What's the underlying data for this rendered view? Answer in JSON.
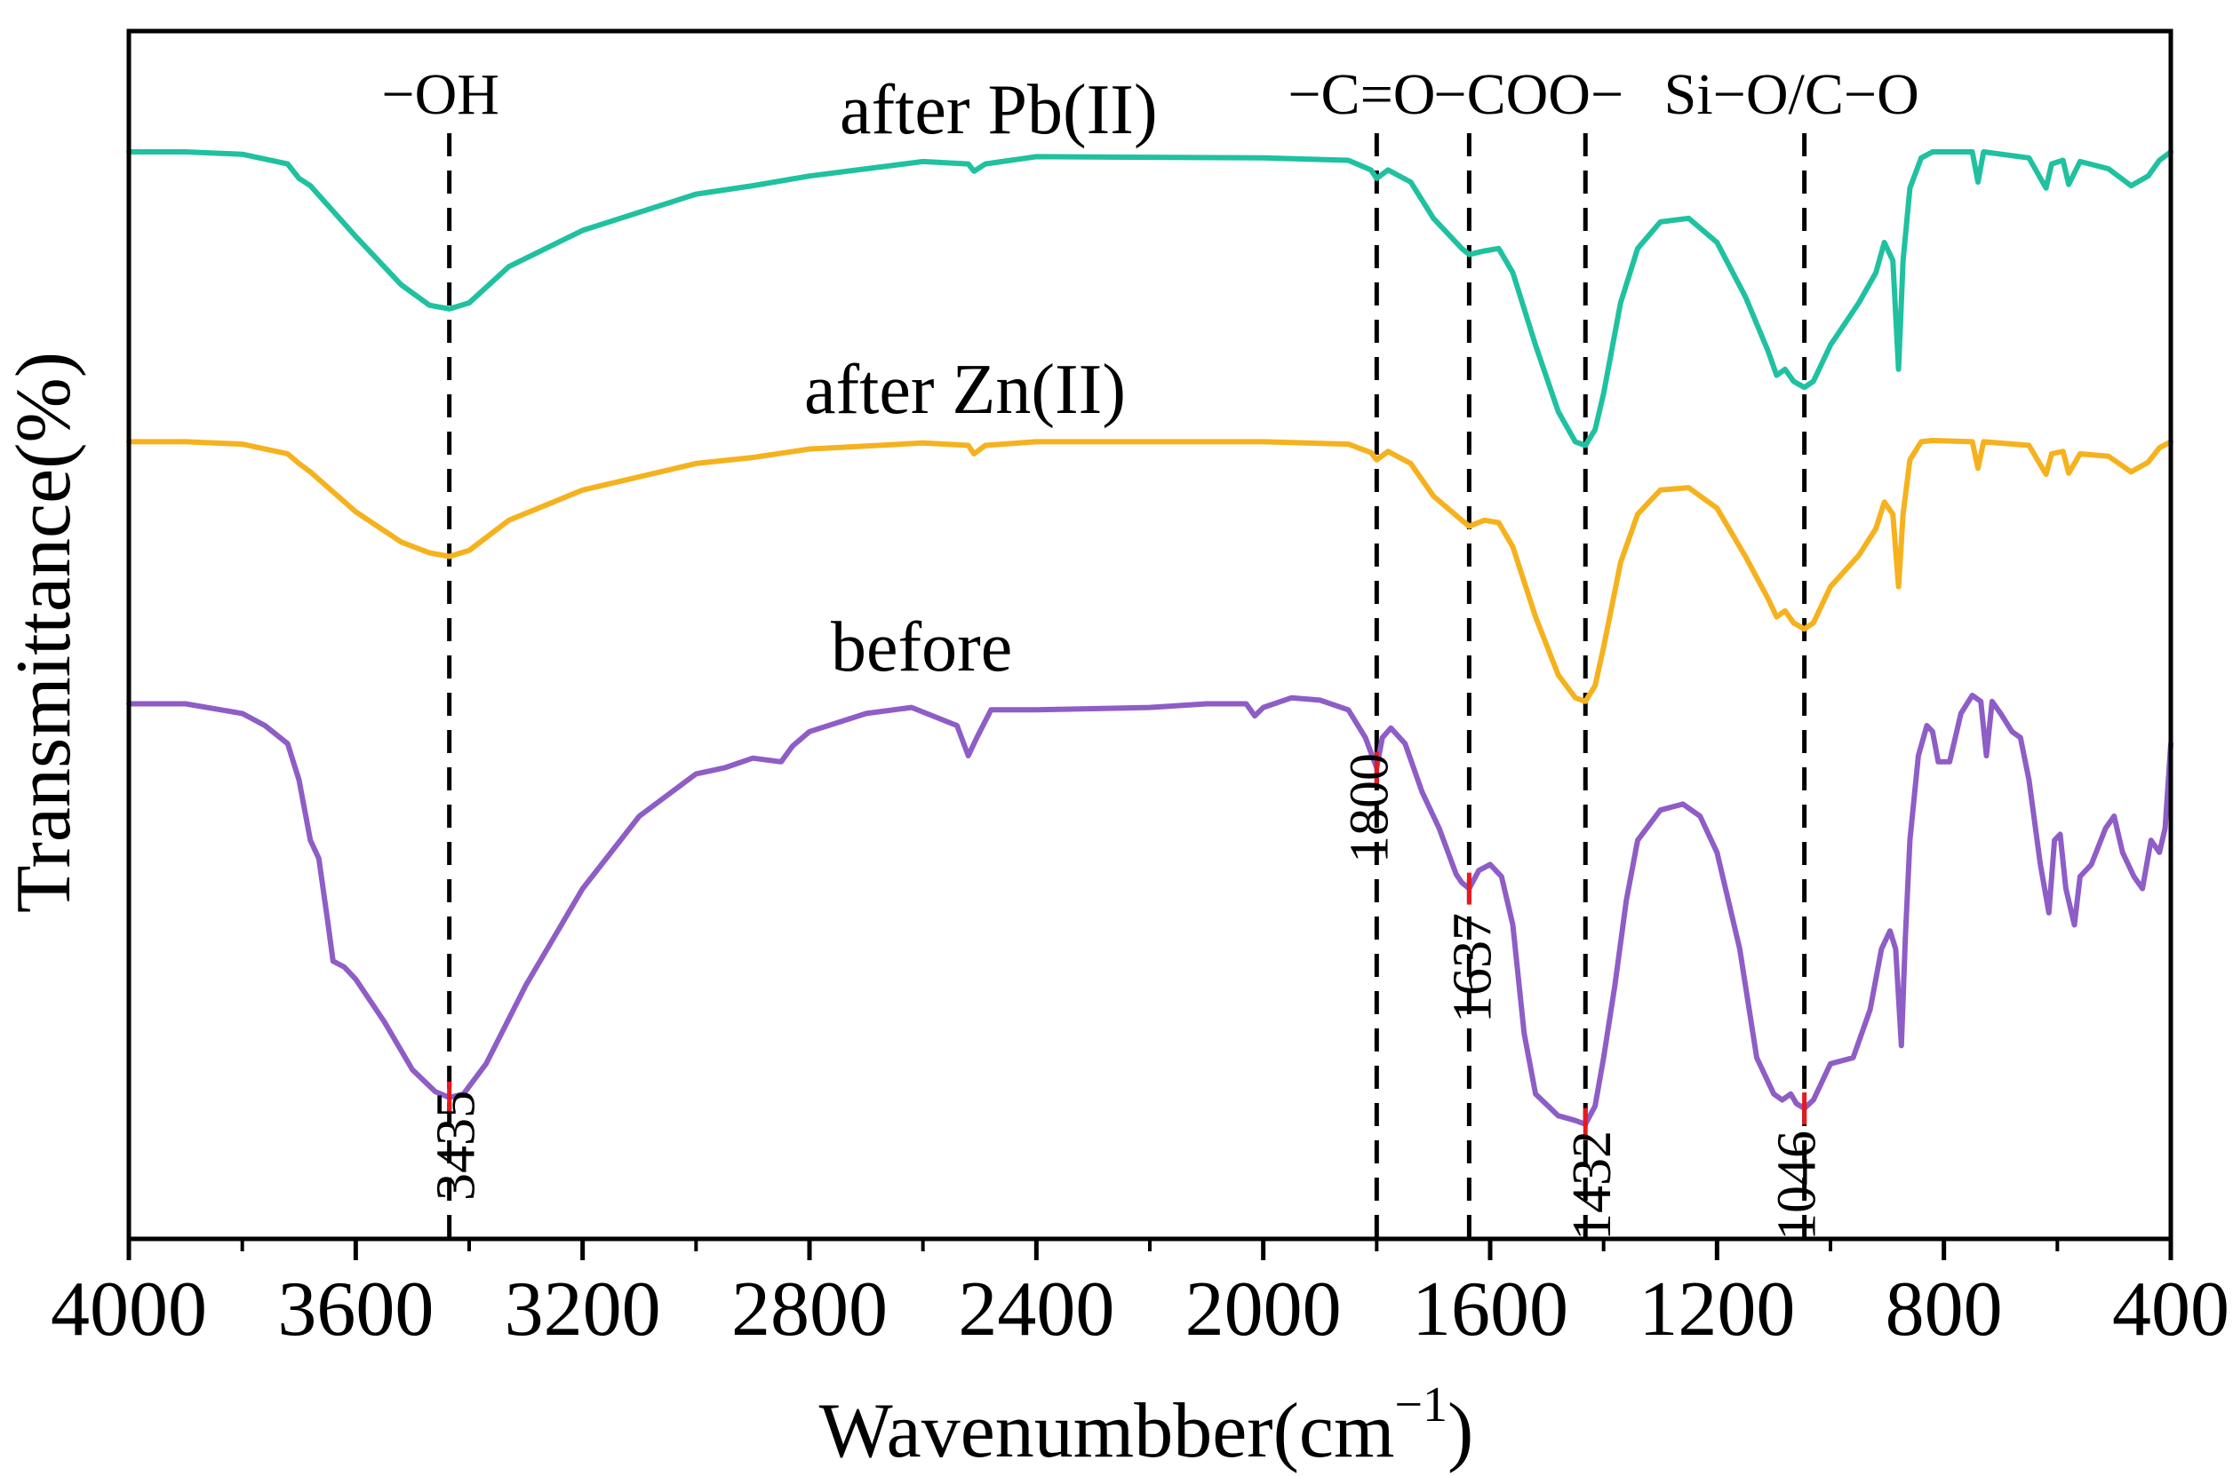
{
  "chart_data": {
    "type": "line",
    "title": "",
    "xlabel": "Wavenumbber(cm",
    "xlabel_sup": "−1",
    "xlabel_close": ")",
    "ylabel": "Transmittance(%)",
    "xlim": [
      4000,
      400
    ],
    "x_reversed": true,
    "x_ticks": [
      4000,
      3600,
      3200,
      2800,
      2400,
      2000,
      1600,
      1200,
      800,
      400
    ],
    "x_tick_labels": [
      "4000",
      "3600",
      "3200",
      "2800",
      "2400",
      "2000",
      "1600",
      "1200",
      "800",
      "400"
    ],
    "ylim": [
      0,
      100
    ],
    "y_ticks_visible": false,
    "grid": false,
    "colors": {
      "pb": "#1fc1a0",
      "zn": "#f5b21e",
      "before": "#8e5dc6",
      "peak_marker": "#e8191e",
      "axis": "#000000"
    },
    "series": [
      {
        "name": "after Pb(II)",
        "color": "#1fc1a0",
        "points": [
          [
            4000,
            90
          ],
          [
            3900,
            90
          ],
          [
            3800,
            89.8
          ],
          [
            3720,
            89
          ],
          [
            3700,
            87.8
          ],
          [
            3680,
            87.2
          ],
          [
            3600,
            83
          ],
          [
            3520,
            79
          ],
          [
            3470,
            77.3
          ],
          [
            3435,
            77
          ],
          [
            3400,
            77.5
          ],
          [
            3330,
            80.5
          ],
          [
            3200,
            83.5
          ],
          [
            3000,
            86.5
          ],
          [
            2900,
            87.2
          ],
          [
            2800,
            88
          ],
          [
            2600,
            89.2
          ],
          [
            2520,
            89
          ],
          [
            2510,
            88.4
          ],
          [
            2490,
            89
          ],
          [
            2400,
            89.6
          ],
          [
            2000,
            89.5
          ],
          [
            1850,
            89.3
          ],
          [
            1810,
            88.5
          ],
          [
            1800,
            87.8
          ],
          [
            1780,
            88.5
          ],
          [
            1740,
            87.5
          ],
          [
            1700,
            84.5
          ],
          [
            1650,
            82
          ],
          [
            1637,
            81.5
          ],
          [
            1610,
            81.8
          ],
          [
            1585,
            82
          ],
          [
            1560,
            80
          ],
          [
            1520,
            74
          ],
          [
            1480,
            68.5
          ],
          [
            1450,
            66
          ],
          [
            1432,
            65.7
          ],
          [
            1415,
            67
          ],
          [
            1400,
            70
          ],
          [
            1370,
            77.5
          ],
          [
            1340,
            82
          ],
          [
            1300,
            84.2
          ],
          [
            1250,
            84.5
          ],
          [
            1200,
            82.5
          ],
          [
            1150,
            78
          ],
          [
            1110,
            73.5
          ],
          [
            1095,
            71.5
          ],
          [
            1080,
            72
          ],
          [
            1065,
            71
          ],
          [
            1046,
            70.5
          ],
          [
            1030,
            71
          ],
          [
            1000,
            74
          ],
          [
            950,
            77.5
          ],
          [
            920,
            80
          ],
          [
            905,
            82.5
          ],
          [
            890,
            81
          ],
          [
            880,
            72
          ],
          [
            872,
            81
          ],
          [
            860,
            87
          ],
          [
            840,
            89.5
          ],
          [
            820,
            90
          ],
          [
            750,
            90
          ],
          [
            740,
            87.5
          ],
          [
            730,
            90
          ],
          [
            650,
            89.5
          ],
          [
            620,
            87
          ],
          [
            610,
            89
          ],
          [
            590,
            89.3
          ],
          [
            580,
            87.3
          ],
          [
            560,
            89.2
          ],
          [
            510,
            88.6
          ],
          [
            470,
            87.2
          ],
          [
            440,
            88
          ],
          [
            420,
            89.3
          ],
          [
            400,
            90
          ]
        ]
      },
      {
        "name": "after Zn(II)",
        "color": "#f5b21e",
        "points": [
          [
            4000,
            66
          ],
          [
            3900,
            66
          ],
          [
            3800,
            65.8
          ],
          [
            3720,
            65
          ],
          [
            3700,
            64.2
          ],
          [
            3680,
            63.5
          ],
          [
            3600,
            60.2
          ],
          [
            3520,
            57.7
          ],
          [
            3470,
            56.8
          ],
          [
            3435,
            56.5
          ],
          [
            3400,
            57
          ],
          [
            3330,
            59.5
          ],
          [
            3200,
            62
          ],
          [
            3000,
            64.2
          ],
          [
            2900,
            64.7
          ],
          [
            2800,
            65.4
          ],
          [
            2600,
            65.9
          ],
          [
            2520,
            65.7
          ],
          [
            2510,
            65
          ],
          [
            2490,
            65.7
          ],
          [
            2400,
            66
          ],
          [
            2000,
            66
          ],
          [
            1850,
            65.8
          ],
          [
            1810,
            65.1
          ],
          [
            1800,
            64.5
          ],
          [
            1780,
            65.2
          ],
          [
            1740,
            64.2
          ],
          [
            1700,
            61.5
          ],
          [
            1650,
            59.5
          ],
          [
            1637,
            59
          ],
          [
            1610,
            59.5
          ],
          [
            1585,
            59.3
          ],
          [
            1560,
            57.3
          ],
          [
            1520,
            51.5
          ],
          [
            1480,
            46.7
          ],
          [
            1450,
            44.8
          ],
          [
            1432,
            44.5
          ],
          [
            1415,
            45.8
          ],
          [
            1400,
            49
          ],
          [
            1370,
            56
          ],
          [
            1340,
            60
          ],
          [
            1300,
            62
          ],
          [
            1250,
            62.2
          ],
          [
            1200,
            60.5
          ],
          [
            1150,
            56.5
          ],
          [
            1110,
            53
          ],
          [
            1095,
            51.5
          ],
          [
            1080,
            52
          ],
          [
            1065,
            51
          ],
          [
            1046,
            50.5
          ],
          [
            1030,
            51
          ],
          [
            1000,
            54
          ],
          [
            950,
            56.6
          ],
          [
            920,
            58.8
          ],
          [
            905,
            61
          ],
          [
            890,
            60
          ],
          [
            880,
            54
          ],
          [
            872,
            60
          ],
          [
            860,
            64.5
          ],
          [
            840,
            66
          ],
          [
            820,
            66.1
          ],
          [
            750,
            66
          ],
          [
            740,
            63.8
          ],
          [
            730,
            66
          ],
          [
            650,
            65.7
          ],
          [
            620,
            63.3
          ],
          [
            610,
            65
          ],
          [
            590,
            65.2
          ],
          [
            580,
            63.4
          ],
          [
            560,
            65
          ],
          [
            510,
            64.8
          ],
          [
            470,
            63.5
          ],
          [
            440,
            64.3
          ],
          [
            420,
            65.5
          ],
          [
            400,
            66
          ]
        ]
      },
      {
        "name": "before",
        "color": "#8e5dc6",
        "points": [
          [
            4000,
            44.3
          ],
          [
            3900,
            44.3
          ],
          [
            3800,
            43.5
          ],
          [
            3760,
            42.5
          ],
          [
            3720,
            41
          ],
          [
            3700,
            38
          ],
          [
            3680,
            33
          ],
          [
            3665,
            31.5
          ],
          [
            3650,
            26.5
          ],
          [
            3640,
            23
          ],
          [
            3620,
            22.5
          ],
          [
            3600,
            21.5
          ],
          [
            3550,
            18
          ],
          [
            3500,
            14
          ],
          [
            3460,
            12.2
          ],
          [
            3435,
            11.7
          ],
          [
            3410,
            12
          ],
          [
            3370,
            14.5
          ],
          [
            3300,
            21
          ],
          [
            3200,
            29
          ],
          [
            3100,
            35
          ],
          [
            3000,
            38.5
          ],
          [
            2950,
            39
          ],
          [
            2900,
            39.8
          ],
          [
            2850,
            39.5
          ],
          [
            2830,
            40.8
          ],
          [
            2800,
            42
          ],
          [
            2700,
            43.5
          ],
          [
            2620,
            44
          ],
          [
            2540,
            42.5
          ],
          [
            2520,
            40
          ],
          [
            2505,
            41.5
          ],
          [
            2480,
            43.8
          ],
          [
            2400,
            43.8
          ],
          [
            2200,
            44
          ],
          [
            2100,
            44.3
          ],
          [
            2030,
            44.3
          ],
          [
            2015,
            43.3
          ],
          [
            2000,
            44
          ],
          [
            1950,
            44.8
          ],
          [
            1900,
            44.6
          ],
          [
            1850,
            43.8
          ],
          [
            1820,
            41.5
          ],
          [
            1800,
            39
          ],
          [
            1790,
            41.5
          ],
          [
            1775,
            42.3
          ],
          [
            1750,
            41
          ],
          [
            1720,
            37
          ],
          [
            1690,
            34
          ],
          [
            1660,
            30.2
          ],
          [
            1650,
            29.5
          ],
          [
            1637,
            29
          ],
          [
            1620,
            30.5
          ],
          [
            1600,
            31
          ],
          [
            1580,
            30
          ],
          [
            1560,
            26
          ],
          [
            1540,
            17
          ],
          [
            1520,
            12
          ],
          [
            1480,
            10.2
          ],
          [
            1450,
            9.8
          ],
          [
            1432,
            9.5
          ],
          [
            1415,
            11
          ],
          [
            1400,
            15
          ],
          [
            1380,
            21
          ],
          [
            1360,
            28
          ],
          [
            1340,
            33
          ],
          [
            1300,
            35.5
          ],
          [
            1260,
            36
          ],
          [
            1230,
            35
          ],
          [
            1200,
            32
          ],
          [
            1160,
            24
          ],
          [
            1130,
            15
          ],
          [
            1100,
            12
          ],
          [
            1085,
            11.5
          ],
          [
            1070,
            12
          ],
          [
            1060,
            11.2
          ],
          [
            1046,
            10.8
          ],
          [
            1030,
            11.5
          ],
          [
            1000,
            14.5
          ],
          [
            960,
            15
          ],
          [
            930,
            19
          ],
          [
            910,
            24
          ],
          [
            895,
            25.5
          ],
          [
            885,
            24
          ],
          [
            875,
            16
          ],
          [
            868,
            25
          ],
          [
            860,
            33
          ],
          [
            845,
            40
          ],
          [
            830,
            42.5
          ],
          [
            820,
            42
          ],
          [
            810,
            39.5
          ],
          [
            790,
            39.5
          ],
          [
            770,
            43.5
          ],
          [
            750,
            45
          ],
          [
            735,
            44.5
          ],
          [
            725,
            40
          ],
          [
            715,
            44.5
          ],
          [
            700,
            43.5
          ],
          [
            680,
            42
          ],
          [
            665,
            41.5
          ],
          [
            650,
            38
          ],
          [
            630,
            31
          ],
          [
            615,
            27
          ],
          [
            605,
            33
          ],
          [
            595,
            33.5
          ],
          [
            585,
            29
          ],
          [
            570,
            26
          ],
          [
            560,
            30
          ],
          [
            540,
            31
          ],
          [
            515,
            34
          ],
          [
            500,
            35
          ],
          [
            485,
            32
          ],
          [
            465,
            30
          ],
          [
            450,
            29
          ],
          [
            435,
            33
          ],
          [
            420,
            32
          ],
          [
            410,
            34
          ],
          [
            400,
            41
          ]
        ]
      }
    ],
    "curve_labels": [
      {
        "text": "after Pb(II)",
        "series": "after Pb(II)"
      },
      {
        "text": "after Zn(II)",
        "series": "after Zn(II)"
      },
      {
        "text": "before",
        "series": "before"
      }
    ],
    "reference_lines": [
      {
        "x": 3435,
        "group": "−OH",
        "peak_label": "3435",
        "peak_y": 11.7
      },
      {
        "x": 1800,
        "group": "−C=O",
        "peak_label": "1800",
        "peak_y": 39
      },
      {
        "x": 1637,
        "group": "−COO−",
        "peak_label": "1637",
        "peak_y": 29
      },
      {
        "x": 1432,
        "group": "",
        "peak_label": "1432",
        "peak_y": 9.5
      },
      {
        "x": 1046,
        "group": "Si−O/C−O",
        "peak_label": "1046",
        "peak_y": 10.8
      }
    ]
  }
}
